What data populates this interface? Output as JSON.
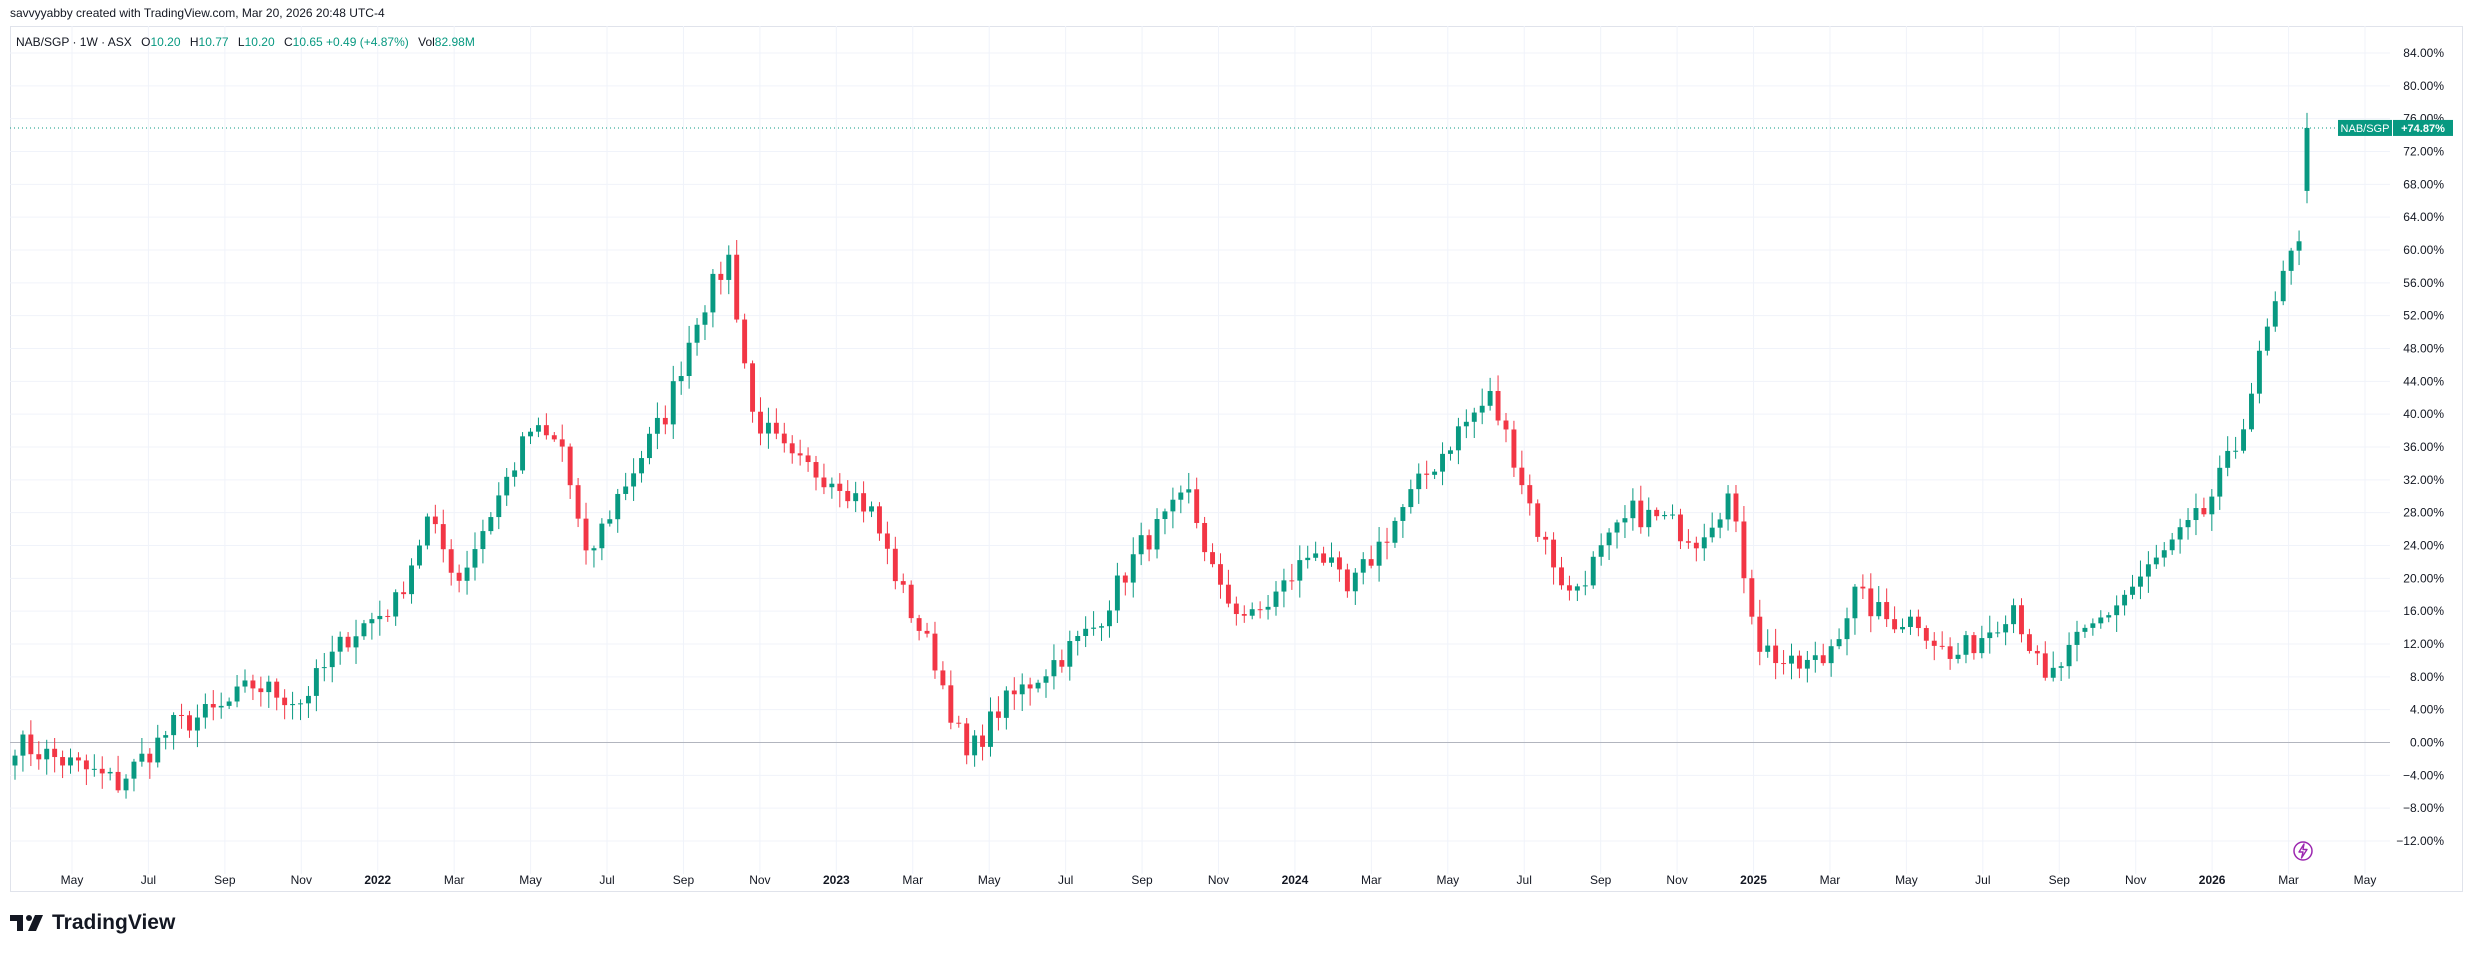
{
  "header": {
    "credit": "savvyyabby created with TradingView.com, Mar 20, 2026 20:48 UTC-4"
  },
  "legend": {
    "symbol": "NAB/SGP · 1W · ASX",
    "o_label": "O",
    "o_value": "10.20",
    "h_label": "H",
    "h_value": "10.77",
    "l_label": "L",
    "l_value": "10.20",
    "c_label": "C",
    "c_value": "10.65",
    "change": "+0.49 (+4.87%)",
    "vol_label": "Vol",
    "vol_value": "82.98M"
  },
  "price_label": {
    "symbol": "NAB/SGP",
    "value": "+74.87%"
  },
  "footer": {
    "brand": "TradingView"
  },
  "colors": {
    "up": "#089981",
    "down": "#f23645",
    "grid": "#f0f3fa",
    "text": "#131722",
    "axis_text": "#131722"
  },
  "icons": [
    "tradingview-logo-icon",
    "lightning-icon"
  ],
  "chart_data": {
    "type": "candlestick",
    "y_unit": "percent",
    "ylim": [
      -14,
      86
    ],
    "y_ticks": [
      "84.00%",
      "80.00%",
      "76.00%",
      "72.00%",
      "68.00%",
      "64.00%",
      "60.00%",
      "56.00%",
      "52.00%",
      "48.00%",
      "44.00%",
      "40.00%",
      "36.00%",
      "32.00%",
      "28.00%",
      "24.00%",
      "20.00%",
      "16.00%",
      "12.00%",
      "8.00%",
      "4.00%",
      "0.00%",
      "−4.00%",
      "−8.00%",
      "−12.00%"
    ],
    "x_ticks": [
      "May",
      "Jul",
      "Sep",
      "Nov",
      "2022",
      "Mar",
      "May",
      "Jul",
      "Sep",
      "Nov",
      "2023",
      "Mar",
      "May",
      "Jul",
      "Sep",
      "Nov",
      "2024",
      "Mar",
      "May",
      "Jul",
      "Sep",
      "Nov",
      "2025",
      "Mar",
      "May",
      "Jul",
      "Sep",
      "Nov",
      "2026",
      "Mar",
      "May"
    ],
    "bold_ticks": [
      "2022",
      "2023",
      "2024",
      "2025",
      "2026"
    ],
    "grid": true,
    "last_value": 74.87,
    "keypoints": [
      [
        0,
        0
      ],
      [
        8,
        -3
      ],
      [
        13,
        -5
      ],
      [
        20,
        2
      ],
      [
        26,
        4
      ],
      [
        30,
        7
      ],
      [
        36,
        5
      ],
      [
        42,
        13
      ],
      [
        48,
        17
      ],
      [
        52,
        27
      ],
      [
        56,
        20
      ],
      [
        62,
        32
      ],
      [
        65,
        38
      ],
      [
        69,
        36
      ],
      [
        72,
        22
      ],
      [
        76,
        30
      ],
      [
        82,
        40
      ],
      [
        86,
        52
      ],
      [
        90,
        59
      ],
      [
        93,
        40
      ],
      [
        98,
        34
      ],
      [
        104,
        32
      ],
      [
        108,
        28
      ],
      [
        112,
        18
      ],
      [
        116,
        10
      ],
      [
        120,
        -2
      ],
      [
        124,
        4
      ],
      [
        130,
        9
      ],
      [
        136,
        14
      ],
      [
        142,
        24
      ],
      [
        148,
        30
      ],
      [
        152,
        18
      ],
      [
        156,
        15
      ],
      [
        160,
        19
      ],
      [
        164,
        24
      ],
      [
        168,
        18
      ],
      [
        172,
        24
      ],
      [
        176,
        30
      ],
      [
        182,
        38
      ],
      [
        186,
        42
      ],
      [
        189,
        35
      ],
      [
        192,
        26
      ],
      [
        196,
        18
      ],
      [
        200,
        23
      ],
      [
        204,
        28
      ],
      [
        208,
        27
      ],
      [
        212,
        25
      ],
      [
        216,
        30
      ],
      [
        220,
        12
      ],
      [
        224,
        9
      ],
      [
        228,
        10
      ],
      [
        232,
        18
      ],
      [
        236,
        15
      ],
      [
        240,
        15
      ],
      [
        244,
        10
      ],
      [
        248,
        13
      ],
      [
        252,
        17
      ],
      [
        256,
        7
      ],
      [
        260,
        12
      ],
      [
        264,
        16
      ],
      [
        268,
        20
      ],
      [
        272,
        24
      ],
      [
        276,
        28
      ],
      [
        280,
        36
      ],
      [
        284,
        50
      ],
      [
        286,
        56
      ],
      [
        288,
        62
      ],
      [
        289,
        75
      ]
    ]
  }
}
